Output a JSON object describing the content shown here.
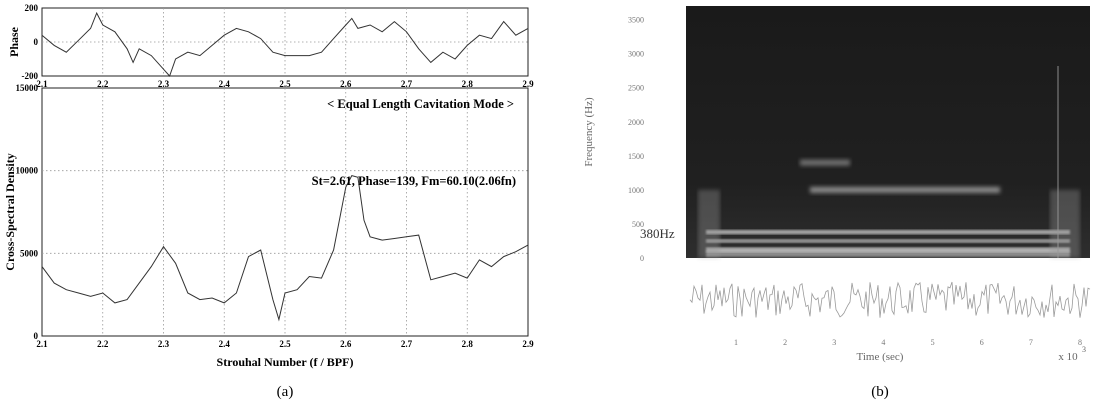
{
  "figure": {
    "label_a": "(a)",
    "label_b": "(b)"
  },
  "chart_data": [
    {
      "type": "line",
      "panel": "a-top",
      "ylabel": "Phase",
      "xlim": [
        2.1,
        2.9
      ],
      "ylim": [
        -200,
        200
      ],
      "xticks": [
        "2.1",
        "2.2",
        "2.3",
        "2.4",
        "2.5",
        "2.6",
        "2.7",
        "2.8",
        "2.9"
      ],
      "yticks": [
        "200",
        "0",
        "-200"
      ],
      "grid": true,
      "x": [
        2.1,
        2.12,
        2.14,
        2.16,
        2.18,
        2.19,
        2.2,
        2.22,
        2.24,
        2.25,
        2.26,
        2.28,
        2.3,
        2.31,
        2.32,
        2.34,
        2.36,
        2.38,
        2.4,
        2.42,
        2.44,
        2.46,
        2.48,
        2.5,
        2.52,
        2.54,
        2.56,
        2.58,
        2.6,
        2.61,
        2.62,
        2.64,
        2.66,
        2.68,
        2.7,
        2.72,
        2.74,
        2.76,
        2.78,
        2.8,
        2.82,
        2.84,
        2.86,
        2.88,
        2.9
      ],
      "y": [
        40,
        -20,
        -60,
        10,
        80,
        170,
        100,
        60,
        -40,
        -120,
        -40,
        -80,
        -160,
        -200,
        -100,
        -60,
        -80,
        -20,
        40,
        80,
        60,
        20,
        -60,
        -80,
        -80,
        -80,
        -60,
        20,
        100,
        139,
        80,
        100,
        60,
        120,
        60,
        -40,
        -120,
        -60,
        -100,
        -20,
        40,
        20,
        120,
        40,
        80
      ]
    },
    {
      "type": "line",
      "panel": "a-bottom",
      "xlabel": "Strouhal Number (f / BPF)",
      "ylabel": "Cross-Spectral Density",
      "xlim": [
        2.1,
        2.9
      ],
      "ylim": [
        0,
        15000
      ],
      "xticks": [
        "2.1",
        "2.2",
        "2.3",
        "2.4",
        "2.5",
        "2.6",
        "2.7",
        "2.8",
        "2.9"
      ],
      "yticks": [
        "15000",
        "10000",
        "5000",
        "0"
      ],
      "grid": true,
      "annotations": [
        "< Equal Length Cavitation Mode >",
        "St=2.61, Phase=139, Fm=60.10(2.06fn)"
      ],
      "x": [
        2.1,
        2.12,
        2.14,
        2.16,
        2.18,
        2.2,
        2.22,
        2.24,
        2.26,
        2.28,
        2.3,
        2.32,
        2.34,
        2.36,
        2.38,
        2.4,
        2.42,
        2.44,
        2.46,
        2.48,
        2.49,
        2.5,
        2.52,
        2.54,
        2.56,
        2.58,
        2.6,
        2.61,
        2.62,
        2.63,
        2.64,
        2.66,
        2.68,
        2.7,
        2.72,
        2.74,
        2.76,
        2.78,
        2.8,
        2.82,
        2.84,
        2.86,
        2.88,
        2.9
      ],
      "y": [
        4200,
        3200,
        2800,
        2600,
        2400,
        2600,
        2000,
        2200,
        3200,
        4200,
        5400,
        4400,
        2600,
        2200,
        2300,
        2000,
        2600,
        4800,
        5200,
        2200,
        1000,
        2600,
        2800,
        3600,
        3500,
        5200,
        9000,
        9700,
        9600,
        7000,
        6000,
        5800,
        5900,
        6000,
        6100,
        3400,
        3600,
        3800,
        3500,
        4600,
        4200,
        4800,
        5100,
        5500
      ]
    },
    {
      "type": "heatmap",
      "panel": "b",
      "xlabel": "Time (sec)",
      "ylabel": "Frequency (Hz)",
      "xticks": [
        "1",
        "2",
        "3",
        "4",
        "5",
        "6",
        "7",
        "8"
      ],
      "yticks": [
        "3500",
        "3000",
        "2500",
        "2000",
        "1500",
        "1000",
        "500",
        "0"
      ],
      "x_multiplier": "x 10",
      "x_multiplier_exp": "3",
      "annotations": [
        "380Hz"
      ],
      "bands_hz": [
        120,
        250,
        380,
        1000,
        1400
      ]
    }
  ]
}
